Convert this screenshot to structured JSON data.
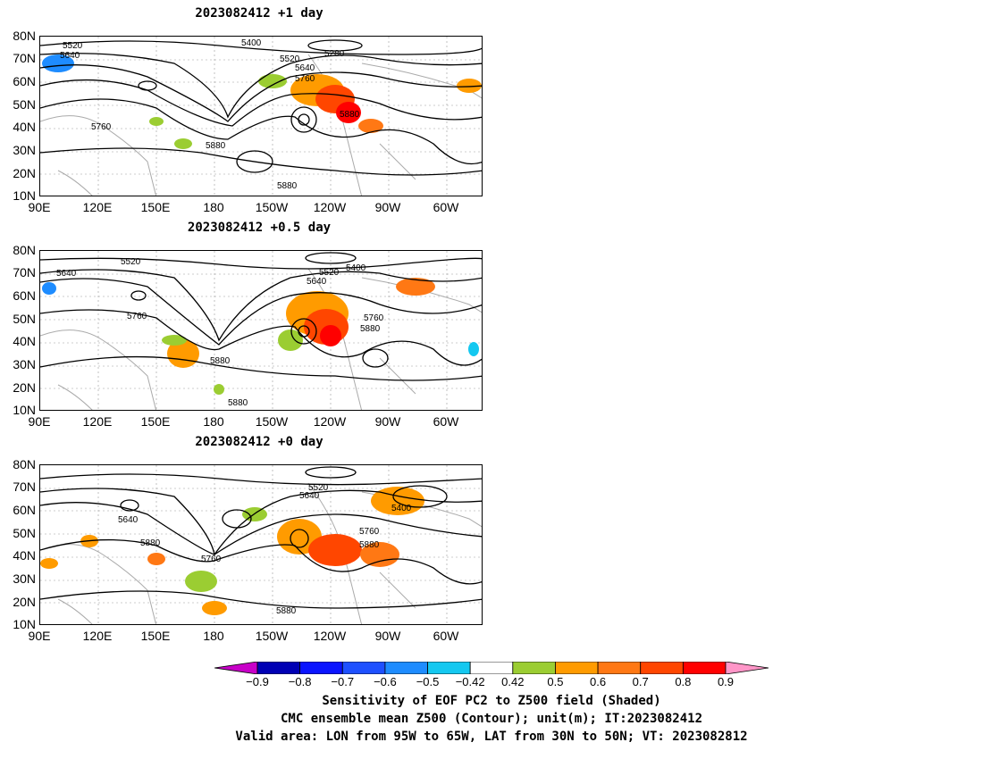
{
  "panels": [
    {
      "title": "2023082412  +1 day",
      "contour_labels": [
        "5520",
        "5640",
        "5400",
        "5280",
        "5520",
        "5640",
        "5760",
        "5880",
        "5760",
        "5880",
        "5880"
      ]
    },
    {
      "title": "2023082412  +0.5 day",
      "contour_labels": [
        "5520",
        "5640",
        "5400",
        "5520",
        "5640",
        "5760",
        "5760",
        "5880",
        "5880",
        "5880"
      ]
    },
    {
      "title": "2023082412  +0 day",
      "contour_labels": [
        "5520",
        "5640",
        "5400",
        "5640",
        "5880",
        "5760",
        "5760",
        "5880",
        "5880"
      ]
    }
  ],
  "lat_labels": [
    "80N",
    "70N",
    "60N",
    "50N",
    "40N",
    "30N",
    "20N",
    "10N"
  ],
  "lon_labels": [
    "90E",
    "120E",
    "150E",
    "180",
    "150W",
    "120W",
    "90W",
    "60W"
  ],
  "colorbar": {
    "labels": [
      "−0.9",
      "−0.8",
      "−0.7",
      "−0.6",
      "−0.5",
      "−0.42",
      "0.42",
      "0.5",
      "0.6",
      "0.7",
      "0.8",
      "0.9"
    ],
    "colors": [
      "#c800c8",
      "#0000b4",
      "#0a14ff",
      "#1e50ff",
      "#1e8cff",
      "#14c8f0",
      "#ffffff",
      "#9bcd32",
      "#ff9b00",
      "#ff7814",
      "#ff4600",
      "#ff0000",
      "#ff96c8"
    ]
  },
  "caption": {
    "line1": "Sensitivity of EOF PC2 to Z500 field (Shaded)",
    "line2": "CMC ensemble mean Z500 (Contour); unit(m); IT:2023082412",
    "line3": "Valid area: LON from 95W to 65W, LAT from 30N to 50N; VT: 2023082812"
  }
}
